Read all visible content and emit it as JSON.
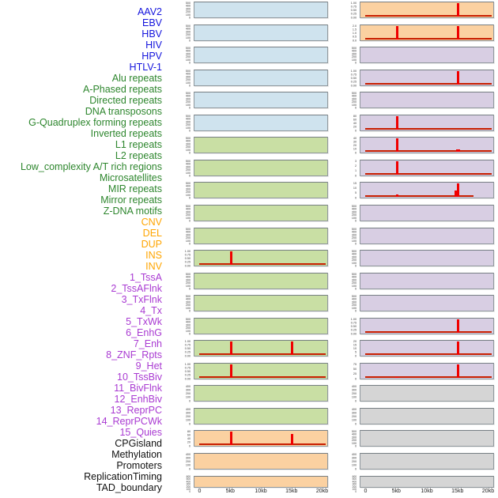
{
  "figure_title": "",
  "palette": {
    "virus_label": "#1414dd",
    "repeat_label": "#2d862d",
    "sv_label": "#ffa500",
    "chromatin_label": "#a93ad2",
    "other_label": "#111111",
    "virus_bg": "#cfe3ee",
    "repeat_bg": "#c9dfa4",
    "sv_bg": "#fbd1a1",
    "chromatin_bg": "#d8cee3",
    "other_bg": "#d5d5d5",
    "spike_red": "#f00000",
    "baseline_red": "#c81e00",
    "plot_border": "#8f979c",
    "tick_text": "#3a3a3a"
  },
  "chart_data": {
    "type": "line",
    "description": "44 genomic feature signal tracks over a 0-20kb window, small multiples in two columns; red spikes mark feature density peaks near 5kb and 15kb",
    "columns": 2,
    "rows_per_column": 22,
    "x": {
      "label": "",
      "ticks": [
        "0",
        "5kb",
        "10kb",
        "15kb",
        "20kb"
      ],
      "range_kb": [
        0,
        20
      ]
    },
    "tracks": [
      {
        "label": "AAV2",
        "category": "virus",
        "yticks": [
          "500",
          "400",
          "300",
          "200",
          "100",
          "0"
        ],
        "spikes": [],
        "baseline": false
      },
      {
        "label": "EBV",
        "category": "virus",
        "yticks": [
          "500",
          "400",
          "300",
          "200",
          "100",
          "0"
        ],
        "spikes": [],
        "baseline": false
      },
      {
        "label": "HBV",
        "category": "virus",
        "yticks": [
          "500",
          "400",
          "300",
          "200",
          "100",
          "0"
        ],
        "spikes": [],
        "baseline": false
      },
      {
        "label": "HIV",
        "category": "virus",
        "yticks": [
          "500",
          "400",
          "300",
          "200",
          "100",
          "0"
        ],
        "spikes": [],
        "baseline": false
      },
      {
        "label": "HPV",
        "category": "virus",
        "yticks": [
          "500",
          "400",
          "300",
          "200",
          "100",
          "0"
        ],
        "spikes": [],
        "baseline": false
      },
      {
        "label": "HTLV-1",
        "category": "virus",
        "yticks": [
          "500",
          "400",
          "300",
          "200",
          "100",
          "0"
        ],
        "spikes": [],
        "baseline": false
      },
      {
        "label": "Alu repeats",
        "category": "repeat",
        "yticks": [
          "500",
          "400",
          "300",
          "200",
          "100",
          "0"
        ],
        "spikes": [],
        "baseline": false
      },
      {
        "label": "A-Phased repeats",
        "category": "repeat",
        "yticks": [
          "500",
          "400",
          "300",
          "200",
          "100",
          "0"
        ],
        "spikes": [],
        "baseline": false
      },
      {
        "label": "Directed repeats",
        "category": "repeat",
        "yticks": [
          "500",
          "400",
          "300",
          "200",
          "100",
          "0"
        ],
        "spikes": [],
        "baseline": false
      },
      {
        "label": "DNA transposons",
        "category": "repeat",
        "yticks": [
          "500",
          "400",
          "300",
          "200",
          "100",
          "0"
        ],
        "spikes": [],
        "baseline": false
      },
      {
        "label": "G-Quadruplex forming repeats",
        "category": "repeat",
        "yticks": [
          "500",
          "400",
          "300",
          "200",
          "100",
          "0"
        ],
        "spikes": [],
        "baseline": false
      },
      {
        "label": "Inverted repeats",
        "category": "repeat",
        "yticks": [
          "1.00",
          "0.75",
          "0.50",
          "0.25",
          "0.00"
        ],
        "spikes": [
          {
            "kb": 5,
            "h": 1
          }
        ],
        "baseline": true
      },
      {
        "label": "L1 repeats",
        "category": "repeat",
        "yticks": [
          "500",
          "400",
          "300",
          "200",
          "100",
          "0"
        ],
        "spikes": [],
        "baseline": false
      },
      {
        "label": "L2 repeats",
        "category": "repeat",
        "yticks": [
          "500",
          "400",
          "300",
          "200",
          "100",
          "0"
        ],
        "spikes": [],
        "baseline": false
      },
      {
        "label": "Low_complexity A/T rich regions",
        "category": "repeat",
        "yticks": [
          "500",
          "400",
          "300",
          "200",
          "100",
          "0"
        ],
        "spikes": [],
        "baseline": false
      },
      {
        "label": "Microsatellites",
        "category": "repeat",
        "yticks": [
          "1.00",
          "0.75",
          "0.50",
          "0.25",
          "0.00"
        ],
        "spikes": [
          {
            "kb": 5,
            "h": 1
          },
          {
            "kb": 15,
            "h": 1
          }
        ],
        "baseline": true
      },
      {
        "label": "MIR repeats",
        "category": "repeat",
        "yticks": [
          "1.00",
          "0.75",
          "0.50",
          "0.25",
          "0.00"
        ],
        "spikes": [
          {
            "kb": 5,
            "h": 1
          }
        ],
        "baseline": true
      },
      {
        "label": "Mirror repeats",
        "category": "repeat",
        "yticks": [
          "400",
          "300",
          "200",
          "100",
          "0"
        ],
        "spikes": [],
        "baseline": false
      },
      {
        "label": "Z-DNA motifs",
        "category": "repeat",
        "yticks": [
          "400",
          "300",
          "200",
          "100",
          "0"
        ],
        "spikes": [],
        "baseline": false
      },
      {
        "label": "CNV",
        "category": "sv",
        "yticks": [
          "80",
          "60",
          "40",
          "20",
          "0"
        ],
        "spikes": [
          {
            "kb": 5,
            "h": 1
          },
          {
            "kb": 15,
            "h": 0.8
          }
        ],
        "baseline": true
      },
      {
        "label": "DEL",
        "category": "sv",
        "yticks": [
          "400",
          "300",
          "200",
          "100",
          "0"
        ],
        "spikes": [],
        "baseline": false
      },
      {
        "label": "DUP",
        "category": "sv",
        "yticks": [
          "600",
          "500",
          "400",
          "300",
          "200",
          "100",
          "0"
        ],
        "spikes": [],
        "baseline": false
      },
      {
        "label": "INS",
        "category": "sv",
        "yticks": [
          "1.00",
          "0.75",
          "0.50",
          "0.25",
          "0.00"
        ],
        "spikes": [
          {
            "kb": 15,
            "h": 1
          }
        ],
        "baseline": true
      },
      {
        "label": "INV",
        "category": "sv",
        "yticks": [
          "2.0",
          "1.5",
          "1.0",
          "0.5",
          "0.0"
        ],
        "spikes": [
          {
            "kb": 5,
            "h": 1
          },
          {
            "kb": 15,
            "h": 1
          }
        ],
        "baseline": true
      },
      {
        "label": "1_TssA",
        "category": "chromatin",
        "yticks": [
          "500",
          "400",
          "300",
          "200",
          "100",
          "0"
        ],
        "spikes": [],
        "baseline": false
      },
      {
        "label": "2_TssAFlnk",
        "category": "chromatin",
        "yticks": [
          "1.00",
          "0.75",
          "0.50",
          "0.25",
          "0.00"
        ],
        "spikes": [
          {
            "kb": 15,
            "h": 1
          }
        ],
        "baseline": true
      },
      {
        "label": "3_TxFlnk",
        "category": "chromatin",
        "yticks": [
          "500",
          "400",
          "300",
          "200",
          "100",
          "0"
        ],
        "spikes": [],
        "baseline": false
      },
      {
        "label": "4_Tx",
        "category": "chromatin",
        "yticks": [
          "80",
          "60",
          "40",
          "20",
          "0"
        ],
        "spikes": [
          {
            "kb": 5,
            "h": 1
          }
        ],
        "baseline": true
      },
      {
        "label": "5_TxWk",
        "category": "chromatin",
        "yticks": [
          "40",
          "30",
          "20",
          "10",
          "0"
        ],
        "spikes": [
          {
            "kb": 5,
            "h": 1
          },
          {
            "kb": 15,
            "h": 0.15,
            "w": 5
          }
        ],
        "baseline": true
      },
      {
        "label": "6_EnhG",
        "category": "chromatin",
        "yticks": [
          "3",
          "2",
          "1",
          "0"
        ],
        "spikes": [
          {
            "kb": 5,
            "h": 1
          }
        ],
        "baseline": true
      },
      {
        "label": "7_Enh",
        "category": "chromatin",
        "yticks": [
          "15",
          "10",
          "5",
          "0"
        ],
        "spikes": [
          {
            "kb": 5,
            "h": 0.18
          },
          {
            "kb": 14.6,
            "h": 0.45
          },
          {
            "kb": 15,
            "h": 1
          }
        ],
        "baseline": true,
        "baseline_end_kb": 17.5
      },
      {
        "label": "8_ZNF_Rpts",
        "category": "chromatin",
        "yticks": [
          "500",
          "400",
          "300",
          "200",
          "100",
          "0"
        ],
        "spikes": [],
        "baseline": false
      },
      {
        "label": "9_Het",
        "category": "chromatin",
        "yticks": [
          "500",
          "400",
          "300",
          "200",
          "100",
          "0"
        ],
        "spikes": [],
        "baseline": false
      },
      {
        "label": "10_TssBiv",
        "category": "chromatin",
        "yticks": [
          "500",
          "400",
          "300",
          "200",
          "100",
          "0"
        ],
        "spikes": [],
        "baseline": false
      },
      {
        "label": "11_BivFlnk",
        "category": "chromatin",
        "yticks": [
          "500",
          "400",
          "300",
          "200",
          "100",
          "0"
        ],
        "spikes": [],
        "baseline": false
      },
      {
        "label": "12_EnhBiv",
        "category": "chromatin",
        "yticks": [
          "500",
          "400",
          "300",
          "200",
          "100",
          "0"
        ],
        "spikes": [],
        "baseline": false
      },
      {
        "label": "13_ReprPC",
        "category": "chromatin",
        "yticks": [
          "1.00",
          "0.75",
          "0.50",
          "0.25",
          "0.00"
        ],
        "spikes": [
          {
            "kb": 15,
            "h": 1
          }
        ],
        "baseline": true
      },
      {
        "label": "14_ReprPCWk",
        "category": "chromatin",
        "yticks": [
          "20",
          "15",
          "10",
          "5",
          "0"
        ],
        "spikes": [
          {
            "kb": 15,
            "h": 1
          }
        ],
        "baseline": true
      },
      {
        "label": "15_Quies",
        "category": "chromatin",
        "yticks": [
          "75",
          "50",
          "25",
          "0"
        ],
        "spikes": [
          {
            "kb": 5,
            "h": 0.07,
            "w": 4
          },
          {
            "kb": 15,
            "h": 1
          }
        ],
        "baseline": true
      },
      {
        "label": "CPGisland",
        "category": "other",
        "yticks": [
          "400",
          "300",
          "200",
          "100",
          "0"
        ],
        "spikes": [],
        "baseline": false
      },
      {
        "label": "Methylation",
        "category": "other",
        "yticks": [
          "400",
          "300",
          "200",
          "100",
          "0"
        ],
        "spikes": [],
        "baseline": false
      },
      {
        "label": "Promoters",
        "category": "other",
        "yticks": [
          "500",
          "400",
          "300",
          "200",
          "100",
          "0"
        ],
        "spikes": [],
        "baseline": false
      },
      {
        "label": "ReplicationTiming",
        "category": "other",
        "yticks": [
          "400",
          "300",
          "200",
          "100",
          "0"
        ],
        "spikes": [],
        "baseline": false
      },
      {
        "label": "TAD_boundary",
        "category": "other",
        "yticks": [
          "600",
          "500",
          "400",
          "300",
          "200",
          "100",
          "0"
        ],
        "spikes": [],
        "baseline": false
      }
    ]
  }
}
